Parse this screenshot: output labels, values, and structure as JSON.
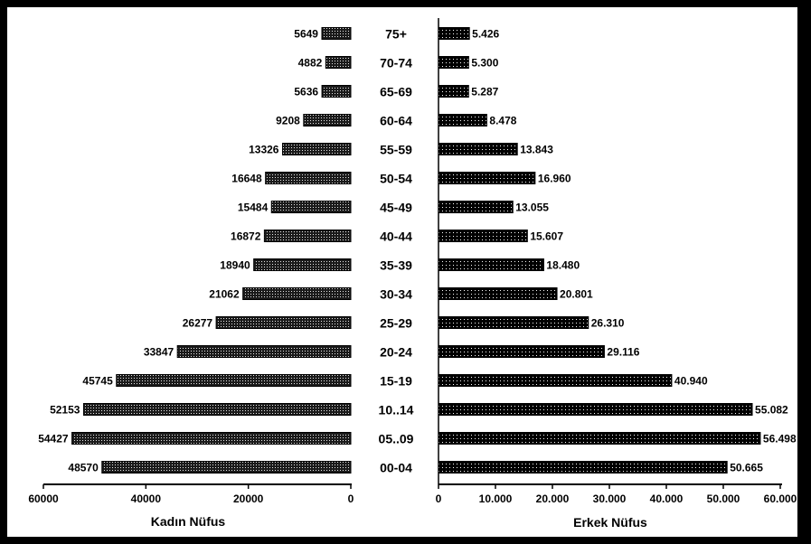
{
  "chart_data": [
    {
      "type": "bar",
      "orientation": "horizontal",
      "direction": "reversed",
      "title": "",
      "xlabel": "Kadın Nüfus",
      "ylabel": "",
      "xlim": [
        0,
        60000
      ],
      "x_ticks": [
        "60000",
        "40000",
        "20000",
        "0"
      ],
      "categories": [
        "75+",
        "70-74",
        "65-69",
        "60-64",
        "55-59",
        "50-54",
        "45-49",
        "40-44",
        "35-39",
        "30-34",
        "25-29",
        "20-24",
        "15-19",
        "10..14",
        "05..09",
        "00-04"
      ],
      "values": [
        5649,
        4882,
        5636,
        9208,
        13326,
        16648,
        15484,
        16872,
        18940,
        21062,
        26277,
        33847,
        45745,
        52153,
        54427,
        48570
      ],
      "value_labels": [
        "5649",
        "4882",
        "5636",
        "9208",
        "13326",
        "16648",
        "15484",
        "16872",
        "18940",
        "21062",
        "26277",
        "33847",
        "45745",
        "52153",
        "54427",
        "48570"
      ],
      "bar_color": "#000000",
      "bar_pattern": "dense-dots",
      "grid": false,
      "legend": "none"
    },
    {
      "type": "bar",
      "orientation": "horizontal",
      "title": "",
      "xlabel": "Erkek Nüfus",
      "ylabel": "",
      "xlim": [
        0,
        60000
      ],
      "x_ticks": [
        "0",
        "10.000",
        "20.000",
        "30.000",
        "40.000",
        "50.000",
        "60.000"
      ],
      "categories": [
        "75+",
        "70-74",
        "65-69",
        "60-64",
        "55-59",
        "50-54",
        "45-49",
        "40-44",
        "35-39",
        "30-34",
        "25-29",
        "20-24",
        "15-19",
        "10..14",
        "05..09",
        "00-04"
      ],
      "values": [
        5426,
        5300,
        5287,
        8478,
        13843,
        16960,
        13055,
        15607,
        18480,
        20801,
        26310,
        29116,
        40940,
        55082,
        56498,
        50665
      ],
      "value_labels": [
        "5.426",
        "5.300",
        "5.287",
        "8.478",
        "13.843",
        "16.960",
        "13.055",
        "15.607",
        "18.480",
        "20.801",
        "26.310",
        "29.116",
        "40.940",
        "55.082",
        "56.498",
        "50.665"
      ],
      "bar_color": "#000000",
      "bar_pattern": "sparse-dots",
      "grid": false,
      "legend": "none"
    }
  ],
  "colors": {
    "frame": "#000000",
    "plot_background": "#ffffff",
    "bar": "#000000"
  }
}
